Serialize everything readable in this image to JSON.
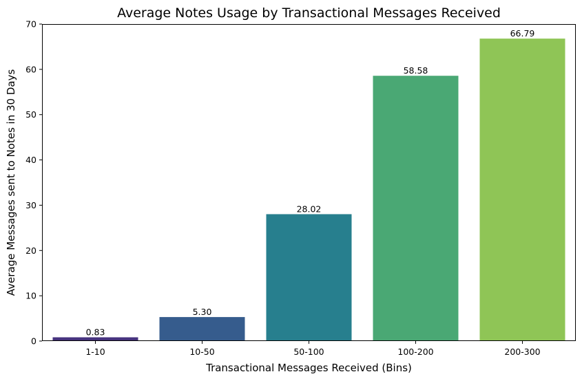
{
  "chart_data": {
    "type": "bar",
    "title": "Average Notes Usage by Transactional Messages Received",
    "xlabel": "Transactional Messages Received (Bins)",
    "ylabel": "Average Messages sent to Notes in 30 Days",
    "categories": [
      "1-10",
      "10-50",
      "50-100",
      "100-200",
      "200-300"
    ],
    "values": [
      0.83,
      5.3,
      28.02,
      58.58,
      66.79
    ],
    "value_labels": [
      "0.83",
      "5.30",
      "28.02",
      "58.58",
      "66.79"
    ],
    "colors": [
      "#46327e",
      "#365c8d",
      "#277f8e",
      "#4aa874",
      "#8fc556"
    ],
    "ylim": [
      0,
      70
    ],
    "yticks": [
      0,
      10,
      20,
      30,
      40,
      50,
      60,
      70
    ],
    "grid": false,
    "legend": null
  }
}
